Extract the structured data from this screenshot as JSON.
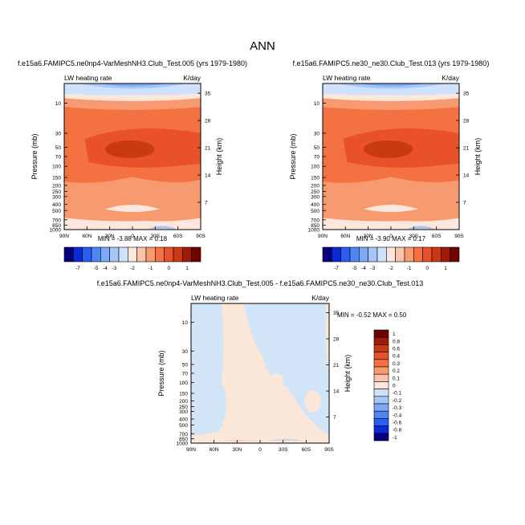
{
  "figure_title": "ANN",
  "colors": {
    "scale": [
      "#08007a",
      "#0c29d6",
      "#2a5ef0",
      "#4f86f5",
      "#7da9f7",
      "#a8c5f7",
      "#cfe2fb",
      "#fde6dc",
      "#fbc4a8",
      "#f89a70",
      "#f47242",
      "#e8512a",
      "#c93912",
      "#9f1d06",
      "#6e0300"
    ],
    "diff_base": "#fbe7d8",
    "diff_blue": "#d2e5f8"
  },
  "chart_data": [
    {
      "type": "heatmap",
      "panel": "left",
      "title": "f.e15a6.FAMIPC5.ne0np4-VarMeshNH3.Club_Test.005 (yrs 1979-1980)",
      "label_left": "LW heating rate",
      "label_right": "K/day",
      "ylabel": "Pressure (mb)",
      "ylabel_right": "Height (km)",
      "x_ticks": [
        "90N",
        "60N",
        "30N",
        "0",
        "30S",
        "60S",
        "90S"
      ],
      "y_ticks": [
        "10",
        "30",
        "50",
        "70",
        "100",
        "150",
        "200",
        "250",
        "300",
        "400",
        "500",
        "700",
        "850",
        "1000"
      ],
      "y_right_ticks": [
        "35",
        "28",
        "21",
        "14",
        "7"
      ],
      "stats": "MIN =  -3.88   MAX =  0.18",
      "min": -3.88,
      "max": 0.18,
      "colorbar_levels": [
        "-7",
        "-5",
        "-4",
        "-3",
        "-2",
        "-1",
        "0",
        "1"
      ]
    },
    {
      "type": "heatmap",
      "panel": "right",
      "title": "f.e15a6.FAMIPC5.ne30_ne30.Club_Test.013 (yrs 1979-1980)",
      "label_left": "LW heating rate",
      "label_right": "K/day",
      "ylabel": "Pressure (mb)",
      "ylabel_right": "Height (km)",
      "x_ticks": [
        "90N",
        "60N",
        "30N",
        "0",
        "30S",
        "60S",
        "90S"
      ],
      "y_ticks": [
        "10",
        "30",
        "50",
        "70",
        "100",
        "150",
        "200",
        "250",
        "300",
        "400",
        "500",
        "700",
        "850",
        "1000"
      ],
      "y_right_ticks": [
        "35",
        "28",
        "21",
        "14",
        "7"
      ],
      "stats": "MIN =  -3.90   MAX =  0.17",
      "min": -3.9,
      "max": 0.17,
      "colorbar_levels": [
        "-7",
        "-5",
        "-4",
        "-3",
        "-2",
        "-1",
        "0",
        "1"
      ]
    },
    {
      "type": "heatmap",
      "panel": "difference",
      "title": "f.e15a6.FAMIPC5.ne0np4-VarMeshNH3.Club_Test.005 - f.e15a6.FAMIPC5.ne30_ne30.Club_Test.013",
      "label_left": "LW heating rate",
      "label_right": "K/day",
      "ylabel": "Pressure (mb)",
      "ylabel_right": "Height (km)",
      "x_ticks": [
        "90N",
        "60N",
        "30N",
        "0",
        "30S",
        "60S",
        "90S"
      ],
      "y_ticks": [
        "10",
        "30",
        "50",
        "70",
        "100",
        "150",
        "200",
        "250",
        "300",
        "400",
        "500",
        "700",
        "850",
        "1000"
      ],
      "y_right_ticks": [
        "35",
        "28",
        "21",
        "14",
        "7"
      ],
      "stats": "MIN =  -0.52   MAX =  0.50",
      "min": -0.52,
      "max": 0.5,
      "colorbar_levels": [
        "1",
        "0.8",
        "0.6",
        "0.4",
        "0.3",
        "0.2",
        "0.1",
        "0",
        "-0.1",
        "-0.2",
        "-0.3",
        "-0.4",
        "-0.6",
        "-0.8",
        "-1"
      ]
    }
  ]
}
